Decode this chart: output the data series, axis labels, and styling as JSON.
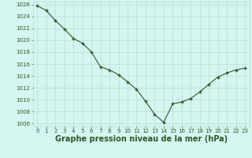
{
  "x": [
    0,
    1,
    2,
    3,
    4,
    5,
    6,
    7,
    8,
    9,
    10,
    11,
    12,
    13,
    14,
    15,
    16,
    17,
    18,
    19,
    20,
    21,
    22,
    23
  ],
  "y": [
    1025.8,
    1025.0,
    1023.3,
    1021.9,
    1020.3,
    1019.5,
    1018.0,
    1015.5,
    1015.0,
    1014.2,
    1013.0,
    1011.7,
    1009.7,
    1007.5,
    1006.2,
    1009.3,
    1009.6,
    1010.2,
    1011.3,
    1012.6,
    1013.8,
    1014.5,
    1015.0,
    1015.3
  ],
  "xlim": [
    -0.5,
    23.5
  ],
  "ylim": [
    1005.5,
    1026.5
  ],
  "yticks": [
    1006,
    1008,
    1010,
    1012,
    1014,
    1016,
    1018,
    1020,
    1022,
    1024,
    1026
  ],
  "xticks": [
    0,
    1,
    2,
    3,
    4,
    5,
    6,
    7,
    8,
    9,
    10,
    11,
    12,
    13,
    14,
    15,
    16,
    17,
    18,
    19,
    20,
    21,
    22,
    23
  ],
  "xlabel": "Graphe pression niveau de la mer (hPa)",
  "line_color": "#2d5a27",
  "marker_color": "#2d5a27",
  "bg_color": "#d4f5f0",
  "grid_color": "#b8ddd8",
  "label_color": "#2d5a27",
  "tick_fontsize": 5,
  "xlabel_fontsize": 7
}
